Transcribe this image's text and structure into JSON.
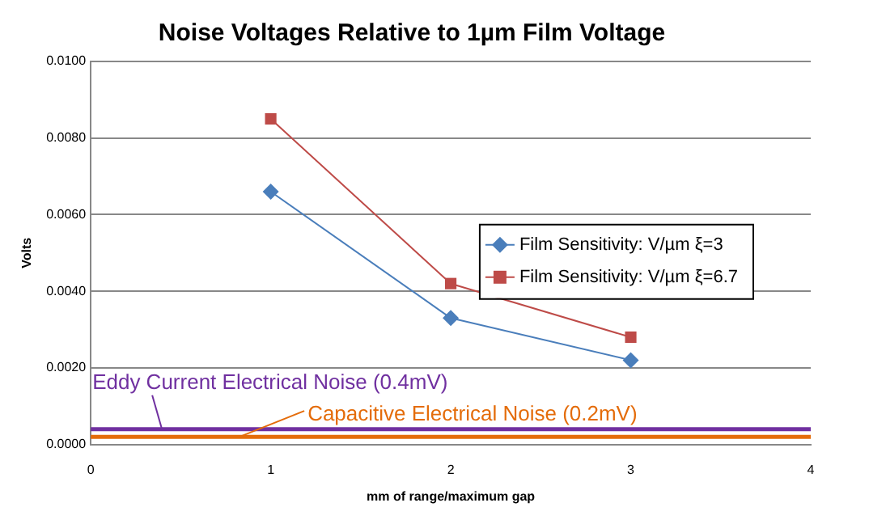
{
  "chart_data": {
    "type": "line",
    "title": "Noise Voltages Relative to 1µm Film Voltage",
    "xlabel": "mm of range/maximum gap",
    "ylabel": "Volts",
    "x": [
      1,
      2,
      3
    ],
    "series": [
      {
        "name": "Film Sensitivity: V/µm ξ=3",
        "color": "#4a7ebb",
        "marker": "diamond",
        "values": [
          0.0066,
          0.0033,
          0.0022
        ]
      },
      {
        "name": "Film Sensitivity: V/µm ξ=6.7",
        "color": "#be4b48",
        "marker": "square",
        "values": [
          0.0085,
          0.0042,
          0.0028
        ]
      }
    ],
    "xlim": [
      0,
      4
    ],
    "xticks": [
      0,
      1,
      2,
      3,
      4
    ],
    "ylim": [
      0,
      0.01
    ],
    "yticks": [
      {
        "value": 0,
        "label": "0.0000"
      },
      {
        "value": 0.002,
        "label": "0.0020"
      },
      {
        "value": 0.004,
        "label": "0.0040"
      },
      {
        "value": 0.006,
        "label": "0.0060"
      },
      {
        "value": 0.008,
        "label": "0.0080"
      },
      {
        "value": 0.01,
        "label": "0.0100"
      }
    ],
    "ref_lines": [
      {
        "axis": "y",
        "value": 0.0004,
        "label": "Eddy Current Electrical Noise (0.4mV)",
        "color": "#7030a0"
      },
      {
        "axis": "y",
        "value": 0.0002,
        "label": "Capacitive Electrical Noise (0.2mV)",
        "color": "#e46c0a"
      }
    ],
    "grid": "y",
    "legend": "right",
    "line_style": "solid"
  }
}
